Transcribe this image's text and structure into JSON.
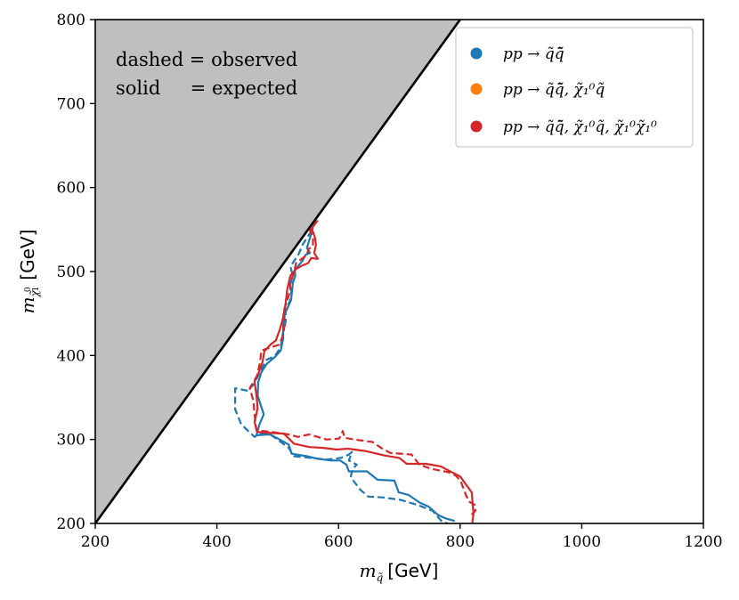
{
  "chart_data": {
    "type": "line",
    "title": "",
    "xlabel_var": "m",
    "xlabel_sub": "q̃",
    "xlabel_unit": "[GeV]",
    "ylabel_var": "m",
    "ylabel_sub": "χ̃",
    "ylabel_sub_sup": "0",
    "ylabel_sub_idx": "1",
    "ylabel_unit": "[GeV]",
    "xlim": [
      200,
      1200
    ],
    "ylim": [
      200,
      800
    ],
    "xticks": [
      200,
      400,
      600,
      800,
      1000,
      1200
    ],
    "yticks": [
      200,
      300,
      400,
      500,
      600,
      700,
      800
    ],
    "grid": false,
    "excluded_region": {
      "description": "m_chi > m_squark",
      "color": "#bfbfbf",
      "boundary": [
        [
          200,
          200
        ],
        [
          800,
          800
        ]
      ]
    },
    "annotations": [
      "dashed = observed",
      "solid     = expected"
    ],
    "legend": {
      "placement": "top-right",
      "entries": [
        {
          "label": "pp → q̃q̃̄",
          "color": "#1f77b4"
        },
        {
          "label": "pp → q̃q̃̄, χ̃₁⁰q̃",
          "color": "#ff7f0e"
        },
        {
          "label": "pp → q̃q̃̄, χ̃₁⁰q̃, χ̃₁⁰χ̃₁⁰",
          "color": "#d62728"
        }
      ]
    },
    "series": [
      {
        "name": "pp → q̃q̃̄ expected",
        "color": "#1f77b4",
        "style": "solid",
        "points": [
          [
            558,
            552
          ],
          [
            548,
            528
          ],
          [
            553,
            522
          ],
          [
            546,
            520
          ],
          [
            540,
            512
          ],
          [
            533,
            506
          ],
          [
            528,
            502
          ],
          [
            529,
            495
          ],
          [
            525,
            487
          ],
          [
            522,
            466
          ],
          [
            512,
            450
          ],
          [
            509,
            436
          ],
          [
            509,
            420
          ],
          [
            505,
            406
          ],
          [
            495,
            398
          ],
          [
            482,
            390
          ],
          [
            473,
            380
          ],
          [
            468,
            368
          ],
          [
            467,
            352
          ],
          [
            472,
            341
          ],
          [
            477,
            330
          ],
          [
            470,
            318
          ],
          [
            465,
            305
          ],
          [
            487,
            306
          ],
          [
            498,
            302
          ],
          [
            518,
            294
          ],
          [
            523,
            283
          ],
          [
            548,
            280
          ],
          [
            566,
            277
          ],
          [
            588,
            275
          ],
          [
            603,
            275
          ],
          [
            613,
            270
          ],
          [
            617,
            262
          ],
          [
            634,
            262
          ],
          [
            647,
            262
          ],
          [
            664,
            252
          ],
          [
            692,
            251
          ],
          [
            699,
            237
          ],
          [
            715,
            234
          ],
          [
            733,
            225
          ],
          [
            748,
            220
          ],
          [
            764,
            210
          ],
          [
            776,
            206
          ],
          [
            791,
            203
          ]
        ]
      },
      {
        "name": "pp → q̃q̃̄ observed",
        "color": "#1f77b4",
        "style": "dashed",
        "points": [
          [
            556,
            549
          ],
          [
            541,
            532
          ],
          [
            534,
            520
          ],
          [
            521,
            506
          ],
          [
            523,
            500
          ],
          [
            525,
            495
          ],
          [
            521,
            486
          ],
          [
            523,
            470
          ],
          [
            513,
            453
          ],
          [
            513,
            440
          ],
          [
            508,
            425
          ],
          [
            505,
            410
          ],
          [
            495,
            399
          ],
          [
            482,
            395
          ],
          [
            471,
            381
          ],
          [
            461,
            366
          ],
          [
            451,
            358
          ],
          [
            430,
            361
          ],
          [
            430,
            336
          ],
          [
            440,
            318
          ],
          [
            462,
            303
          ],
          [
            470,
            307
          ],
          [
            488,
            306
          ],
          [
            518,
            290
          ],
          [
            527,
            280
          ],
          [
            556,
            278
          ],
          [
            580,
            276
          ],
          [
            604,
            278
          ],
          [
            617,
            282
          ],
          [
            622,
            285
          ],
          [
            617,
            275
          ],
          [
            630,
            270
          ],
          [
            623,
            265
          ],
          [
            620,
            255
          ],
          [
            636,
            240
          ],
          [
            649,
            232
          ],
          [
            673,
            231
          ],
          [
            702,
            228
          ],
          [
            730,
            222
          ],
          [
            755,
            215
          ],
          [
            769,
            203
          ],
          [
            779,
            200
          ]
        ]
      },
      {
        "name": "full expected",
        "color": "#d62728",
        "style": "solid",
        "points": [
          [
            564,
            560
          ],
          [
            556,
            551
          ],
          [
            561,
            541
          ],
          [
            563,
            532
          ],
          [
            560,
            522
          ],
          [
            566,
            515
          ],
          [
            555,
            516
          ],
          [
            550,
            510
          ],
          [
            540,
            507
          ],
          [
            530,
            503
          ],
          [
            521,
            495
          ],
          [
            516,
            480
          ],
          [
            513,
            462
          ],
          [
            509,
            445
          ],
          [
            504,
            432
          ],
          [
            497,
            418
          ],
          [
            488,
            413
          ],
          [
            478,
            405
          ],
          [
            475,
            392
          ],
          [
            469,
            380
          ],
          [
            462,
            369
          ],
          [
            465,
            353
          ],
          [
            467,
            337
          ],
          [
            462,
            321
          ],
          [
            466,
            309
          ],
          [
            482,
            308
          ],
          [
            510,
            307
          ],
          [
            527,
            295
          ],
          [
            552,
            291
          ],
          [
            575,
            290
          ],
          [
            597,
            288
          ],
          [
            616,
            289
          ],
          [
            646,
            286
          ],
          [
            675,
            281
          ],
          [
            700,
            278
          ],
          [
            712,
            271
          ],
          [
            744,
            271
          ],
          [
            768,
            268
          ],
          [
            800,
            256
          ],
          [
            819,
            237
          ],
          [
            822,
            212
          ],
          [
            820,
            201
          ]
        ]
      },
      {
        "name": "full observed",
        "color": "#d62728",
        "style": "dashed",
        "points": [
          [
            566,
            561
          ],
          [
            553,
            549
          ],
          [
            558,
            540
          ],
          [
            558,
            530
          ],
          [
            551,
            527
          ],
          [
            548,
            520
          ],
          [
            545,
            518
          ],
          [
            530,
            510
          ],
          [
            528,
            502
          ],
          [
            525,
            495
          ],
          [
            520,
            486
          ],
          [
            521,
            478
          ],
          [
            515,
            464
          ],
          [
            509,
            451
          ],
          [
            512,
            438
          ],
          [
            508,
            423
          ],
          [
            503,
            413
          ],
          [
            490,
            410
          ],
          [
            473,
            406
          ],
          [
            471,
            392
          ],
          [
            466,
            376
          ],
          [
            454,
            361
          ],
          [
            460,
            346
          ],
          [
            462,
            330
          ],
          [
            465,
            311
          ],
          [
            490,
            309
          ],
          [
            518,
            306
          ],
          [
            533,
            303
          ],
          [
            552,
            306
          ],
          [
            580,
            300
          ],
          [
            601,
            301
          ],
          [
            607,
            310
          ],
          [
            610,
            302
          ],
          [
            626,
            300
          ],
          [
            656,
            297
          ],
          [
            670,
            290
          ],
          [
            685,
            284
          ],
          [
            720,
            282
          ],
          [
            733,
            270
          ],
          [
            753,
            265
          ],
          [
            781,
            261
          ],
          [
            793,
            257
          ],
          [
            801,
            250
          ],
          [
            810,
            233
          ],
          [
            815,
            226
          ],
          [
            824,
            222
          ],
          [
            825,
            215
          ],
          [
            818,
            210
          ]
        ]
      }
    ]
  }
}
